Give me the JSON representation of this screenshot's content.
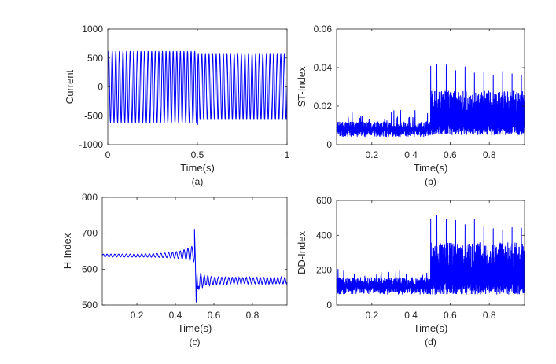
{
  "colors": {
    "line": "#0000ff",
    "axis": "#262626",
    "background": "#ffffff"
  },
  "chart_data": [
    {
      "type": "line",
      "caption": "(a)",
      "xlabel": "Time(s)",
      "ylabel": "Current",
      "xlim": [
        0,
        1
      ],
      "ylim": [
        -1000,
        1000
      ],
      "xticks": [
        0,
        0.5,
        1
      ],
      "xtick_labels": [
        "0",
        "0.5",
        "1"
      ],
      "yticks": [
        -1000,
        -500,
        0,
        500,
        1000
      ],
      "ytick_labels": [
        "-1000",
        "-500",
        "0",
        "500",
        "1000"
      ],
      "series": [
        {
          "name": "current",
          "kind": "sinusoid",
          "t_range": [
            0,
            1
          ],
          "cycles": 50,
          "segments": [
            {
              "t_start": 0,
              "t_end": 0.5,
              "amplitude": 620
            },
            {
              "t_start": 0.5,
              "t_end": 1,
              "amplitude": 570
            }
          ],
          "transient": {
            "t": 0.5,
            "peak": -650
          }
        }
      ],
      "grid": false
    },
    {
      "type": "line",
      "caption": "(b)",
      "xlabel": "Time(s)",
      "ylabel": "ST-Index",
      "xlim": [
        0.02,
        0.98
      ],
      "ylim": [
        0,
        0.06
      ],
      "xticks": [
        0.2,
        0.4,
        0.6,
        0.8
      ],
      "xtick_labels": [
        "0.2",
        "0.4",
        "0.6",
        "0.8"
      ],
      "yticks": [
        0,
        0.02,
        0.04,
        0.06
      ],
      "ytick_labels": [
        "0",
        "0.02",
        "0.04",
        "0.06"
      ],
      "series": [
        {
          "name": "st-index",
          "kind": "noisy-step",
          "before": {
            "t_range": [
              0.02,
              0.5
            ],
            "low": 0.004,
            "high": 0.012,
            "max_spike": 0.018
          },
          "after": {
            "t_range": [
              0.5,
              0.98
            ],
            "low": 0.005,
            "dense_high": 0.028,
            "spike_peak": 0.043,
            "spike_end": 0.037
          }
        }
      ],
      "grid": false
    },
    {
      "type": "line",
      "caption": "(c)",
      "xlabel": "Time(s)",
      "ylabel": "H-Index",
      "xlim": [
        0.02,
        0.98
      ],
      "ylim": [
        500,
        800
      ],
      "xticks": [
        0.2,
        0.4,
        0.6,
        0.8
      ],
      "xtick_labels": [
        "0.2",
        "0.4",
        "0.6",
        "0.8"
      ],
      "yticks": [
        500,
        600,
        700,
        800
      ],
      "ytick_labels": [
        "500",
        "600",
        "700",
        "800"
      ],
      "series": [
        {
          "name": "h-index",
          "kind": "level-shift",
          "before": {
            "t_range": [
              0.02,
              0.5
            ],
            "mean": 638,
            "ripple": 4
          },
          "transient": {
            "t": 0.5,
            "peak": 712,
            "trough": 507
          },
          "after": {
            "t_range": [
              0.52,
              0.98
            ],
            "mean": 568,
            "ripple": 10
          }
        }
      ],
      "grid": false
    },
    {
      "type": "line",
      "caption": "(d)",
      "xlabel": "Time(s)",
      "ylabel": "DD-Index",
      "xlim": [
        0.02,
        0.98
      ],
      "ylim": [
        0,
        600
      ],
      "xticks": [
        0.2,
        0.4,
        0.6,
        0.8
      ],
      "xtick_labels": [
        "0.2",
        "0.4",
        "0.6",
        "0.8"
      ],
      "yticks": [
        0,
        200,
        400,
        600
      ],
      "ytick_labels": [
        "0",
        "200",
        "400",
        "600"
      ],
      "series": [
        {
          "name": "dd-index",
          "kind": "noisy-step",
          "before": {
            "t_range": [
              0.02,
              0.5
            ],
            "low": 60,
            "high": 160,
            "max_spike": 210
          },
          "after": {
            "t_range": [
              0.5,
              0.98
            ],
            "low": 60,
            "dense_high": 360,
            "spike_peak": 520,
            "spike_end": 450
          }
        }
      ],
      "grid": false
    }
  ]
}
